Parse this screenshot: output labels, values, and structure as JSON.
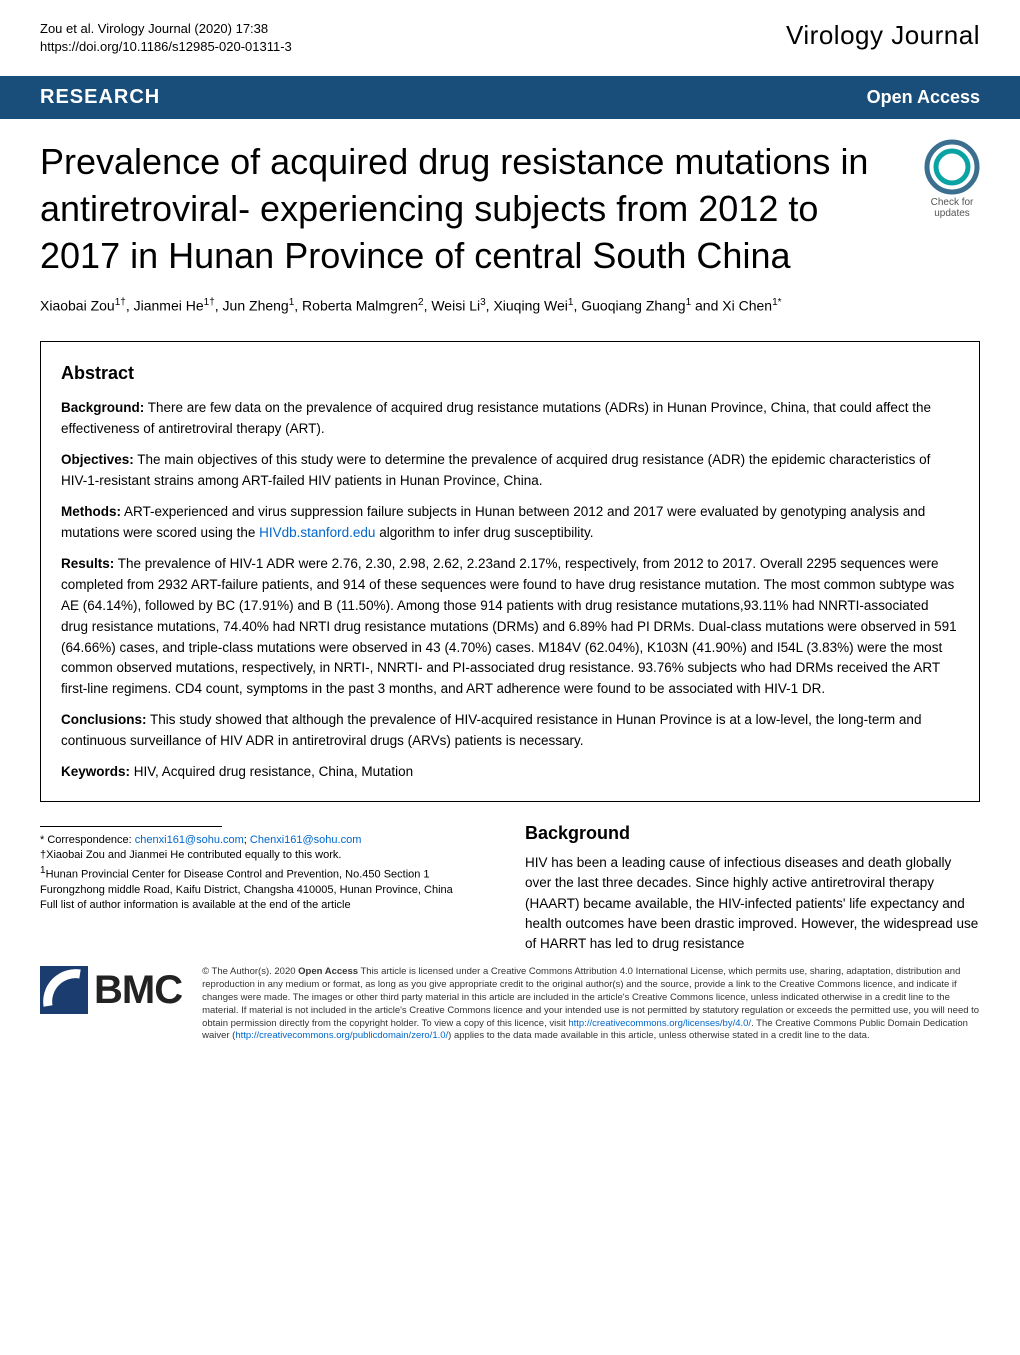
{
  "header": {
    "citation_line1": "Zou et al. Virology Journal        (2020) 17:38",
    "citation_line2": "https://doi.org/10.1186/s12985-020-01311-3",
    "journal_name": "Virology Journal"
  },
  "banner": {
    "left": "RESEARCH",
    "right": "Open Access"
  },
  "title": "Prevalence of acquired drug resistance mutations in antiretroviral- experiencing subjects from 2012 to 2017 in Hunan Province of central South China",
  "check_updates": {
    "line1": "Check for",
    "line2": "updates",
    "ring_color_outer": "#3b6e8f",
    "ring_color_inner": "#0aa3a3"
  },
  "authors": {
    "text_parts": [
      {
        "t": "Xiaobai Zou",
        "s": "1†"
      },
      {
        "t": ", Jianmei He",
        "s": "1†"
      },
      {
        "t": ", Jun Zheng",
        "s": "1"
      },
      {
        "t": ", Roberta Malmgren",
        "s": "2"
      },
      {
        "t": ", Weisi Li",
        "s": "3"
      },
      {
        "t": ", Xiuqing Wei",
        "s": "1"
      },
      {
        "t": ", Guoqiang Zhang",
        "s": "1"
      },
      {
        "t": " and Xi Chen",
        "s": "1*"
      }
    ],
    "fontsize": 14
  },
  "abstract": {
    "heading": "Abstract",
    "sections": [
      {
        "label": "Background:",
        "body": " There are few data on the prevalence of acquired drug resistance mutations (ADRs) in Hunan Province, China, that could affect the effectiveness of antiretroviral therapy (ART)."
      },
      {
        "label": "Objectives:",
        "body": " The main objectives of this study were to determine the prevalence of acquired drug resistance (ADR) the epidemic characteristics of HIV-1-resistant strains among ART-failed HIV patients in Hunan Province, China."
      },
      {
        "label": "Methods:",
        "body": " ART-experienced and virus suppression failure subjects in Hunan between 2012 and 2017 were evaluated by genotyping analysis and mutations were scored using the ",
        "link": "HIVdb.stanford.edu",
        "body2": " algorithm to infer drug susceptibility."
      },
      {
        "label": "Results:",
        "body": " The prevalence of HIV-1 ADR were 2.76, 2.30, 2.98, 2.62, 2.23and 2.17%, respectively, from 2012 to 2017. Overall 2295 sequences were completed from 2932 ART-failure patients, and 914 of these sequences were found to have drug resistance mutation. The most common subtype was AE (64.14%), followed by BC (17.91%) and B (11.50%). Among those 914 patients with drug resistance mutations,93.11% had NNRTI-associated drug resistance mutations, 74.40% had NRTI drug resistance mutations (DRMs) and 6.89% had PI DRMs. Dual-class mutations were observed in 591 (64.66%) cases, and triple-class mutations were observed in 43 (4.70%) cases. M184V (62.04%), K103N (41.90%) and I54L (3.83%) were the most common observed mutations, respectively, in NRTI-, NNRTI- and PI-associated drug resistance. 93.76% subjects who had DRMs received the ART first-line regimens. CD4 count, symptoms in the past 3 months, and ART adherence were found to be associated with HIV-1 DR."
      },
      {
        "label": "Conclusions:",
        "body": " This study showed that although the prevalence of HIV-acquired resistance in Hunan Province is at a low-level, the long-term and continuous surveillance of HIV ADR in antiretroviral drugs (ARVs) patients is necessary."
      },
      {
        "label": "Keywords:",
        "body": " HIV, Acquired drug resistance, China, Mutation"
      }
    ],
    "border_color": "#000000",
    "fontsize": 13.5
  },
  "correspondence": {
    "lines": [
      "* Correspondence: chenxi161@sohu.com; Chenxi161@sohu.com",
      "†Xiaobai Zou and Jianmei He contributed equally to this work.",
      "1Hunan Provincial Center for Disease Control and Prevention, No.450 Section 1 Furongzhong middle Road, Kaifu District, Changsha 410005, Hunan Province, China",
      "Full list of author information is available at the end of the article"
    ],
    "link_color": "#0066cc"
  },
  "background_section": {
    "heading": "Background",
    "body": "HIV has been a leading cause of infectious diseases and death globally over the last three decades. Since highly active antiretroviral therapy (HAART) became available, the HIV-infected patients' life expectancy and health outcomes have been drastic improved. However, the widespread use of HARRT has led to drug resistance"
  },
  "bmc": {
    "text": "BMC",
    "square_color": "#1a3c6e",
    "arc_color": "#ffffff"
  },
  "license": {
    "text_prefix": "© The Author(s). 2020 ",
    "open_access": "Open Access",
    "body1": " This article is licensed under a Creative Commons Attribution 4.0 International License, which permits use, sharing, adaptation, distribution and reproduction in any medium or format, as long as you give appropriate credit to the original author(s) and the source, provide a link to the Creative Commons licence, and indicate if changes were made. The images or other third party material in this article are included in the article's Creative Commons licence, unless indicated otherwise in a credit line to the material. If material is not included in the article's Creative Commons licence and your intended use is not permitted by statutory regulation or exceeds the permitted use, you will need to obtain permission directly from the copyright holder. To view a copy of this licence, visit ",
    "link1": "http://creativecommons.org/licenses/by/4.0/",
    "body2": ". The Creative Commons Public Domain Dedication waiver (",
    "link2": "http://creativecommons.org/publicdomain/zero/1.0/",
    "body3": ") applies to the data made available in this article, unless otherwise stated in a credit line to the data."
  },
  "colors": {
    "banner_bg": "#1a4e7a",
    "banner_text": "#ffffff",
    "link": "#0066cc",
    "text": "#000000"
  }
}
